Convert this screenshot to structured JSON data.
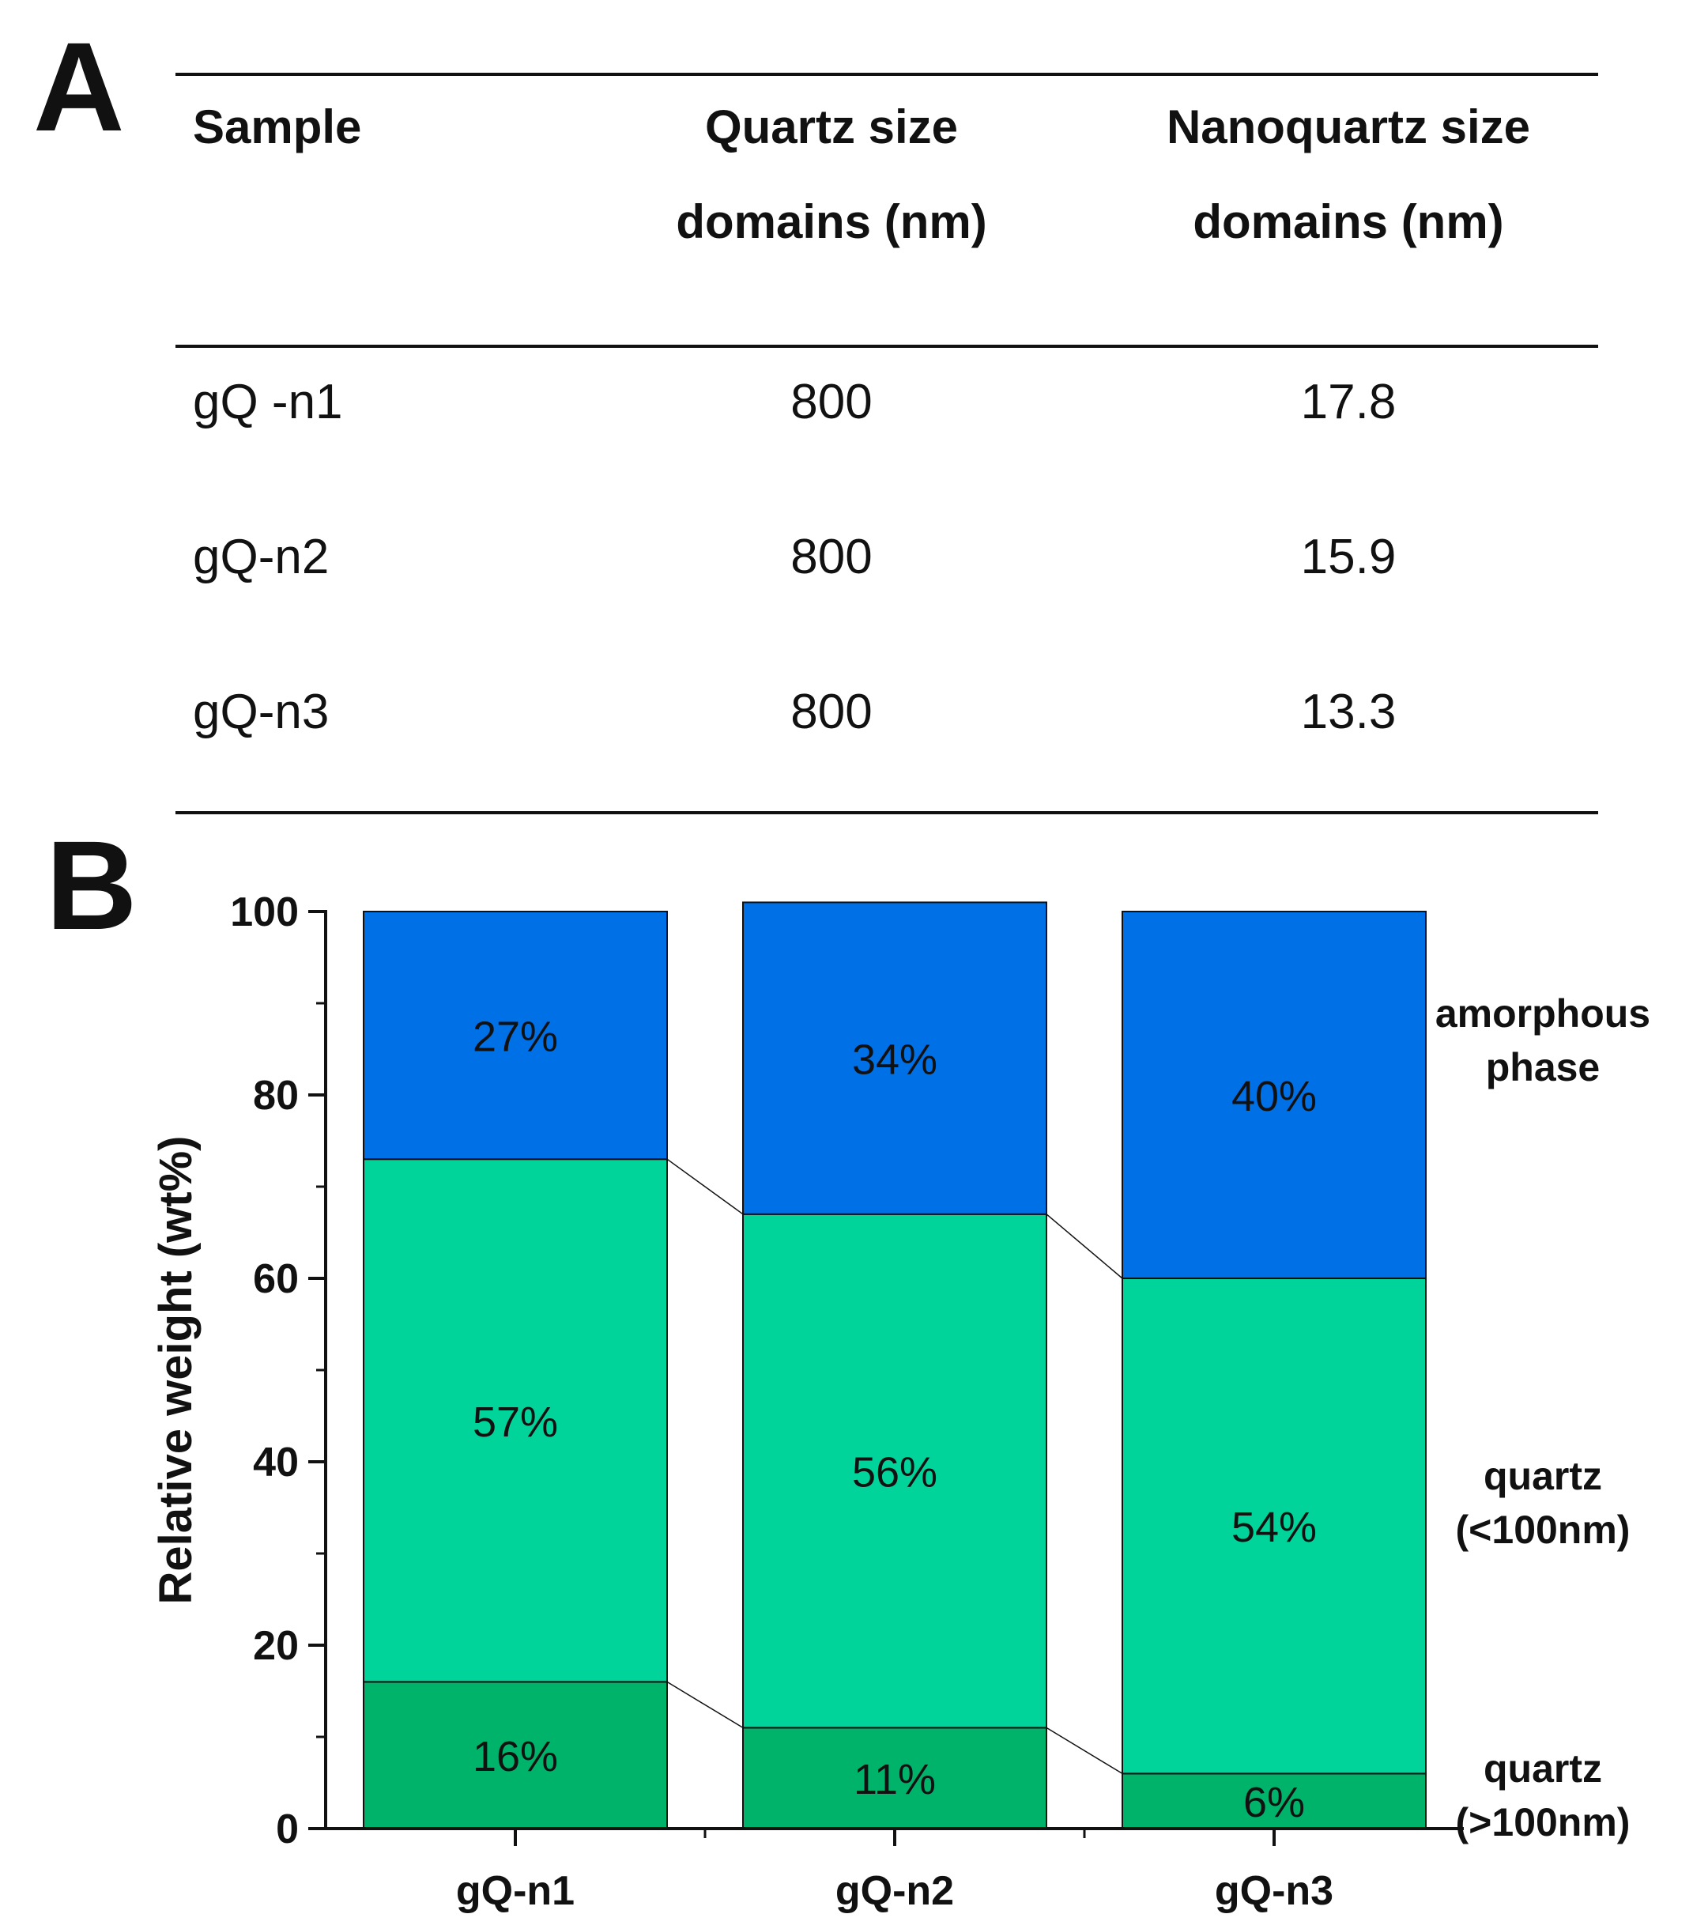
{
  "panels": {
    "a": "A",
    "b": "B"
  },
  "table": {
    "headers": [
      {
        "line1": "Sample",
        "line2": ""
      },
      {
        "line1": "Quartz size",
        "line2": "domains (nm)"
      },
      {
        "line1": "Nanoquartz size",
        "line2": "domains (nm)"
      }
    ],
    "rows": [
      [
        "gQ -n1",
        "800",
        "17.8"
      ],
      [
        "gQ-n2",
        "800",
        "15.9"
      ],
      [
        "gQ-n3",
        "800",
        "13.3"
      ]
    ]
  },
  "chart_data": {
    "type": "bar",
    "stacked": true,
    "title": "",
    "xlabel": "",
    "ylabel": "Relative weight (wt%)",
    "ylim": [
      0,
      100
    ],
    "yticks": [
      "0",
      "20",
      "40",
      "60",
      "80",
      "100"
    ],
    "categories": [
      "gQ-n1",
      "gQ-n2",
      "gQ-n3"
    ],
    "series": [
      {
        "name": "quartz (>100nm)",
        "name_lines": [
          "quartz",
          "(>100nm)"
        ],
        "color": "#00b36b",
        "values": [
          16,
          11,
          6
        ],
        "labels": [
          "16%",
          "11%",
          "6%"
        ]
      },
      {
        "name": "quartz (<100nm)",
        "name_lines": [
          "quartz",
          "(<100nm)"
        ],
        "color": "#00d49a",
        "values": [
          57,
          56,
          54
        ],
        "labels": [
          "57%",
          "56%",
          "54%"
        ]
      },
      {
        "name": "amorphous phase",
        "name_lines": [
          "amorphous",
          "phase"
        ],
        "color": "#0070e6",
        "values": [
          27,
          34,
          40
        ],
        "labels": [
          "27%",
          "34%",
          "40%"
        ]
      }
    ],
    "legend": "right"
  }
}
